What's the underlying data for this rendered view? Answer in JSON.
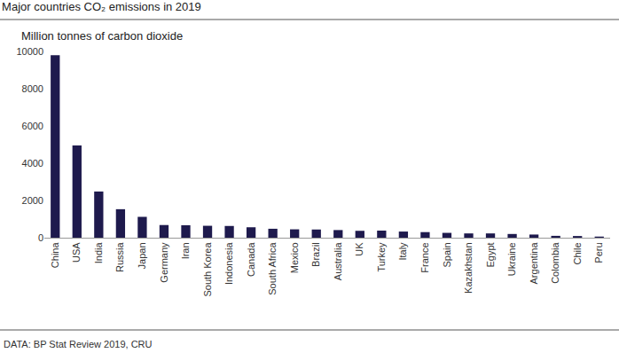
{
  "chart_data": {
    "type": "bar",
    "title": "Major countries CO₂ emissions in 2019",
    "subtitle": "Million tonnes of carbon dioxide",
    "annotations": [
      "DATA: BP Stat Review 2019, CRU"
    ],
    "categories": [
      "China",
      "USA",
      "India",
      "Russia",
      "Japan",
      "Germany",
      "Iran",
      "South Korea",
      "Indonesia",
      "Canada",
      "South Africa",
      "Mexico",
      "Brazil",
      "Australia",
      "UK",
      "Turkey",
      "Italy",
      "France",
      "Spain",
      "Kazakhstan",
      "Egypt",
      "Ukraine",
      "Argentina",
      "Colombia",
      "Chile",
      "Peru"
    ],
    "values": [
      9800,
      4950,
      2480,
      1530,
      1120,
      680,
      670,
      640,
      630,
      560,
      480,
      450,
      440,
      410,
      370,
      380,
      330,
      300,
      260,
      230,
      230,
      200,
      170,
      100,
      90,
      60
    ],
    "color": "#1e1a4d",
    "ylim": [
      0,
      10000
    ],
    "yticks": [
      0,
      2000,
      4000,
      6000,
      8000,
      10000
    ],
    "grid": false
  }
}
